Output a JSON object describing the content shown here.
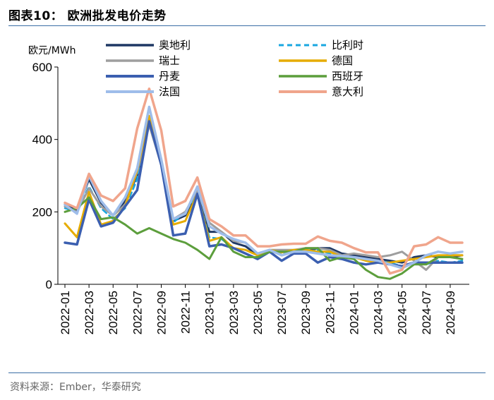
{
  "figure": {
    "title": "图表10：  欧洲批发电价走势",
    "source": "资料来源：Ember，华泰研究"
  },
  "chart_data": {
    "type": "line",
    "ylabel": "欧元/MWh",
    "ylim": [
      0,
      600
    ],
    "yticks": [
      0,
      200,
      400,
      600
    ],
    "x": [
      "2022-01",
      "2022-02",
      "2022-03",
      "2022-04",
      "2022-05",
      "2022-06",
      "2022-07",
      "2022-08",
      "2022-09",
      "2022-10",
      "2022-11",
      "2022-12",
      "2023-01",
      "2023-02",
      "2023-03",
      "2023-04",
      "2023-05",
      "2023-06",
      "2023-07",
      "2023-08",
      "2023-09",
      "2023-10",
      "2023-11",
      "2023-12",
      "2024-01",
      "2024-02",
      "2024-03",
      "2024-04",
      "2024-05",
      "2024-06",
      "2024-07",
      "2024-08",
      "2024-09",
      "2024-10"
    ],
    "xticks": [
      "2022-01",
      "2022-03",
      "2022-05",
      "2022-07",
      "2022-09",
      "2022-11",
      "2023-01",
      "2023-03",
      "2023-05",
      "2023-07",
      "2023-09",
      "2023-11",
      "2024-01",
      "2024-03",
      "2024-05",
      "2024-07",
      "2024-09"
    ],
    "legend_position": "top",
    "series": [
      {
        "name": "奥地利",
        "color": "#1f3864",
        "dash": "",
        "width": 3,
        "values": [
          220,
          205,
          290,
          225,
          190,
          230,
          300,
          455,
          340,
          175,
          190,
          255,
          145,
          145,
          115,
          105,
          80,
          95,
          80,
          90,
          90,
          100,
          100,
          85,
          80,
          75,
          70,
          65,
          60,
          75,
          80,
          75,
          75,
          80
        ]
      },
      {
        "name": "比利时",
        "color": "#1aa7e0",
        "dash": "7,5",
        "width": 2.5,
        "values": [
          210,
          200,
          270,
          210,
          180,
          210,
          290,
          440,
          330,
          170,
          200,
          250,
          130,
          125,
          100,
          95,
          80,
          90,
          85,
          90,
          88,
          95,
          85,
          80,
          75,
          70,
          65,
          60,
          50,
          60,
          55,
          65,
          60,
          65
        ]
      },
      {
        "name": "瑞士",
        "color": "#9e9e9e",
        "dash": "",
        "width": 3,
        "values": [
          215,
          200,
          265,
          215,
          190,
          220,
          310,
          440,
          330,
          180,
          200,
          260,
          170,
          145,
          120,
          115,
          85,
          95,
          95,
          95,
          100,
          100,
          95,
          80,
          85,
          80,
          75,
          80,
          90,
          65,
          40,
          75,
          80,
          80
        ]
      },
      {
        "name": "德国",
        "color": "#e6ac00",
        "dash": "",
        "width": 3,
        "values": [
          168,
          130,
          255,
          165,
          175,
          215,
          315,
          465,
          340,
          165,
          175,
          250,
          120,
          130,
          100,
          95,
          80,
          95,
          88,
          95,
          95,
          90,
          90,
          75,
          75,
          65,
          60,
          60,
          65,
          70,
          75,
          80,
          80,
          80
        ]
      },
      {
        "name": "丹麦",
        "color": "#3b5fb0",
        "dash": "",
        "width": 3.5,
        "values": [
          115,
          110,
          235,
          160,
          170,
          215,
          260,
          450,
          330,
          135,
          140,
          250,
          105,
          110,
          100,
          85,
          70,
          90,
          65,
          85,
          85,
          60,
          75,
          70,
          60,
          55,
          60,
          55,
          50,
          60,
          60,
          60,
          60,
          60
        ]
      },
      {
        "name": "西班牙",
        "color": "#5c9e3c",
        "dash": "",
        "width": 3,
        "values": [
          200,
          210,
          240,
          180,
          185,
          165,
          140,
          155,
          140,
          125,
          115,
          95,
          70,
          130,
          90,
          75,
          75,
          90,
          90,
          90,
          100,
          100,
          65,
          75,
          70,
          40,
          20,
          15,
          30,
          55,
          55,
          75,
          75,
          70
        ]
      },
      {
        "name": "法国",
        "color": "#9ebdea",
        "dash": "",
        "width": 3.5,
        "values": [
          220,
          195,
          300,
          230,
          190,
          240,
          320,
          490,
          345,
          180,
          195,
          270,
          160,
          140,
          125,
          115,
          85,
          95,
          80,
          90,
          90,
          85,
          80,
          78,
          75,
          70,
          65,
          55,
          45,
          60,
          80,
          90,
          85,
          90
        ]
      },
      {
        "name": "意大利",
        "color": "#f0a58c",
        "dash": "",
        "width": 3.5,
        "values": [
          225,
          210,
          305,
          245,
          230,
          265,
          430,
          540,
          425,
          215,
          230,
          295,
          180,
          160,
          135,
          135,
          105,
          105,
          110,
          112,
          112,
          132,
          120,
          115,
          100,
          88,
          88,
          30,
          40,
          105,
          110,
          130,
          115,
          115
        ]
      }
    ]
  }
}
